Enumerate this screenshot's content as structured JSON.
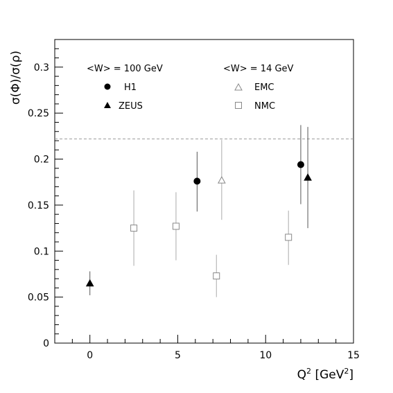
{
  "chart_data": {
    "type": "scatter",
    "title": "",
    "xlabel": "Q",
    "xlabel_sup": "2",
    "xlabel_unit": " [GeV",
    "xlabel_unit_sup": "2",
    "xlabel_unit_close": "]",
    "ylabel": "σ(Φ)/σ(ρ)",
    "xlim": [
      -2,
      15
    ],
    "ylim": [
      0,
      0.33
    ],
    "x_ticks": [
      0,
      5,
      10,
      15
    ],
    "x_tick_labels": [
      "0",
      "5",
      "10",
      "15"
    ],
    "y_ticks": [
      0,
      0.05,
      0.1,
      0.15,
      0.2,
      0.25,
      0.3
    ],
    "y_tick_labels": [
      "0",
      "0.05",
      "0.1",
      "0.15",
      "0.2",
      "0.25",
      "0.3"
    ],
    "grid": false,
    "reference_line": {
      "y": 0.222,
      "style": "dashed"
    },
    "legend_groups": [
      {
        "header": "<W> = 100 GeV",
        "entries": [
          "H1",
          "ZEUS"
        ]
      },
      {
        "header": "<W> = 14 GeV",
        "entries": [
          "EMC",
          "NMC"
        ]
      }
    ],
    "series": [
      {
        "name": "H1",
        "marker": "circle",
        "filled": true,
        "color": "#000000",
        "points": [
          {
            "x": 6.1,
            "y": 0.176,
            "ylo": 0.143,
            "yhi": 0.208
          },
          {
            "x": 12.0,
            "y": 0.194,
            "ylo": 0.151,
            "yhi": 0.237
          }
        ]
      },
      {
        "name": "ZEUS",
        "marker": "triangle",
        "filled": true,
        "color": "#000000",
        "points": [
          {
            "x": 0.0,
            "y": 0.065,
            "ylo": 0.052,
            "yhi": 0.078
          },
          {
            "x": 12.4,
            "y": 0.18,
            "ylo": 0.125,
            "yhi": 0.235
          }
        ]
      },
      {
        "name": "EMC",
        "marker": "triangle",
        "filled": false,
        "color": "#888888",
        "points": [
          {
            "x": 7.5,
            "y": 0.177,
            "ylo": 0.134,
            "yhi": 0.221
          }
        ]
      },
      {
        "name": "NMC",
        "marker": "square",
        "filled": false,
        "color": "#888888",
        "points": [
          {
            "x": 2.5,
            "y": 0.125,
            "ylo": 0.084,
            "yhi": 0.166
          },
          {
            "x": 4.9,
            "y": 0.127,
            "ylo": 0.09,
            "yhi": 0.164
          },
          {
            "x": 7.2,
            "y": 0.073,
            "ylo": 0.05,
            "yhi": 0.096
          },
          {
            "x": 11.3,
            "y": 0.115,
            "ylo": 0.085,
            "yhi": 0.144
          }
        ]
      }
    ]
  }
}
